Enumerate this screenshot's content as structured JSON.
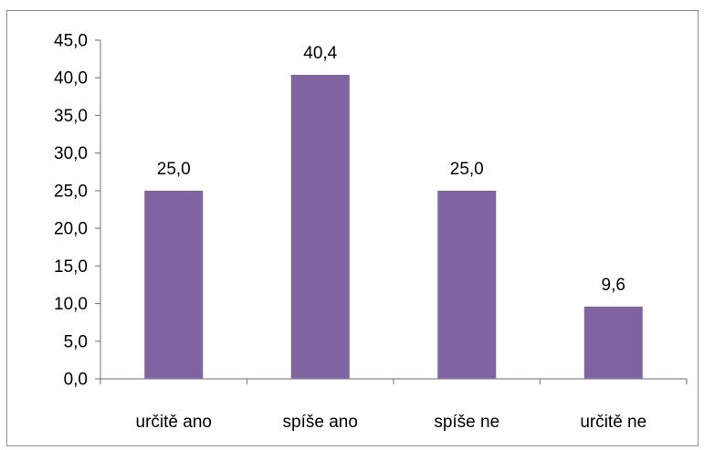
{
  "chart_data": {
    "type": "bar",
    "categories": [
      "určitě ano",
      "spíše ano",
      "spíše ne",
      "určitě ne"
    ],
    "values": [
      25.0,
      40.4,
      25.0,
      9.6
    ],
    "data_labels": [
      "25,0",
      "40,4",
      "25,0",
      "9,6"
    ],
    "ylim": [
      0,
      45
    ],
    "yticks": [
      0,
      5,
      10,
      15,
      20,
      25,
      30,
      35,
      40,
      45
    ],
    "ytick_labels": [
      "0,0",
      "5,0",
      "10,0",
      "15,0",
      "20,0",
      "25,0",
      "30,0",
      "35,0",
      "40,0",
      "45,0"
    ],
    "title": "",
    "xlabel": "",
    "ylabel": "",
    "grid": false,
    "legend": "none",
    "bar_color": "#8064a2"
  }
}
